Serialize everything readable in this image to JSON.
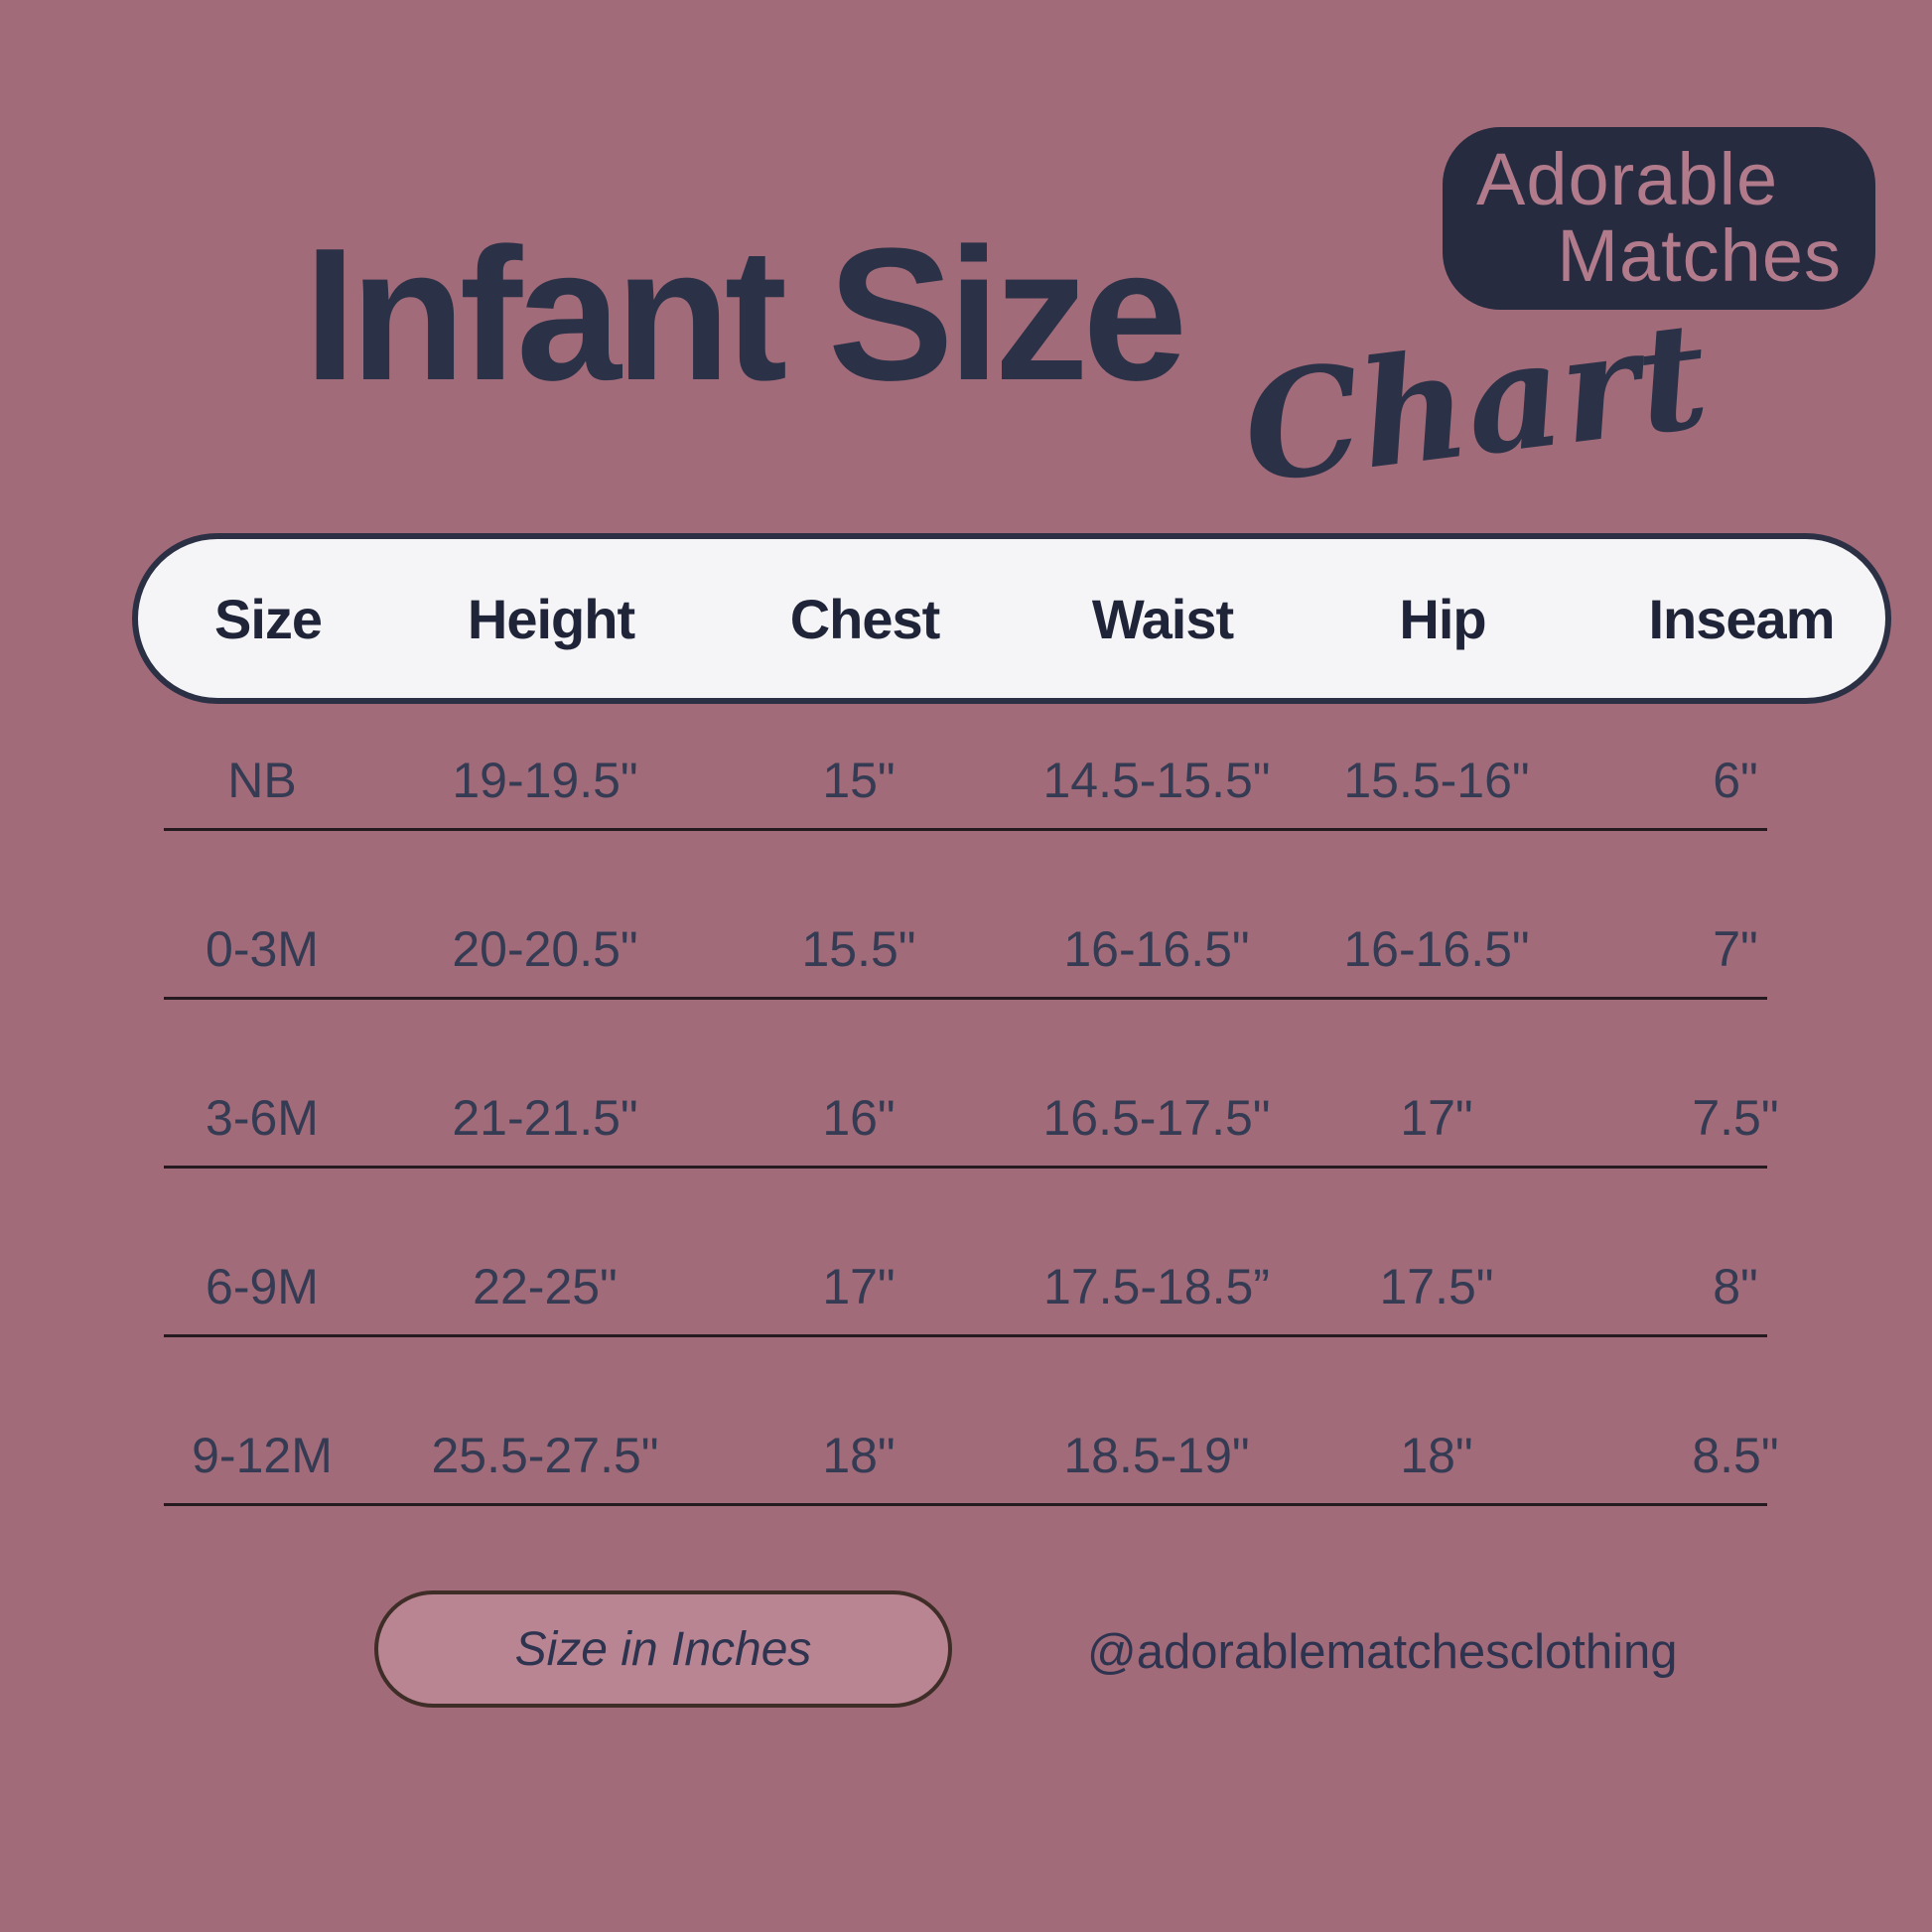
{
  "badge": {
    "line1": "Adorable",
    "line2": "Matches"
  },
  "title": {
    "main": "Infant Size",
    "script": "Chart"
  },
  "table": {
    "columns": [
      "Size",
      "Height",
      "Chest",
      "Waist",
      "Hip",
      "Inseam"
    ],
    "rows": [
      {
        "cells": [
          "NB",
          "19-19.5\"",
          "15\"",
          "14.5-15.5\"",
          "15.5-16\"",
          "6\""
        ]
      },
      {
        "cells": [
          "0-3M",
          "20-20.5\"",
          "15.5\"",
          "16-16.5\"",
          "16-16.5\"",
          "7\""
        ]
      },
      {
        "cells": [
          "3-6M",
          "21-21.5\"",
          "16\"",
          "16.5-17.5\"",
          "17\"",
          "7.5\""
        ]
      },
      {
        "cells": [
          "6-9M",
          "22-25\"",
          "17\"",
          "17.5-18.5”",
          "17.5\"",
          "8\""
        ]
      },
      {
        "cells": [
          "9-12M",
          "25.5-27.5\"",
          "18\"",
          "18.5-19\"",
          "18\"",
          "8.5\""
        ]
      }
    ]
  },
  "footer": {
    "note": "Size in Inches",
    "handle": "@adorablematchesclothing"
  },
  "colors": {
    "background": "#a16b79",
    "navy": "#2b3147",
    "badge_bg": "#262b40",
    "badge_text": "#b27b8c",
    "header_pill_bg": "#f5f4f6",
    "header_pill_border": "#2b3044",
    "divider": "#241a20",
    "footer_pill_bg": "#ba8593",
    "footer_pill_border": "#3f2d28"
  },
  "chart_data": {
    "type": "table",
    "title": "Infant Size Chart",
    "columns": [
      "Size",
      "Height",
      "Chest",
      "Waist",
      "Hip",
      "Inseam"
    ],
    "rows": [
      [
        "NB",
        "19-19.5\"",
        "15\"",
        "14.5-15.5\"",
        "15.5-16\"",
        "6\""
      ],
      [
        "0-3M",
        "20-20.5\"",
        "15.5\"",
        "16-16.5\"",
        "16-16.5\"",
        "7\""
      ],
      [
        "3-6M",
        "21-21.5\"",
        "16\"",
        "16.5-17.5\"",
        "17\"",
        "7.5\""
      ],
      [
        "6-9M",
        "22-25\"",
        "17\"",
        "17.5-18.5”",
        "17.5\"",
        "8\""
      ],
      [
        "9-12M",
        "25.5-27.5\"",
        "18\"",
        "18.5-19\"",
        "18\"",
        "8.5\""
      ]
    ],
    "units": "inches",
    "notes": [
      "Size in Inches",
      "@adorablematchesclothing"
    ]
  }
}
